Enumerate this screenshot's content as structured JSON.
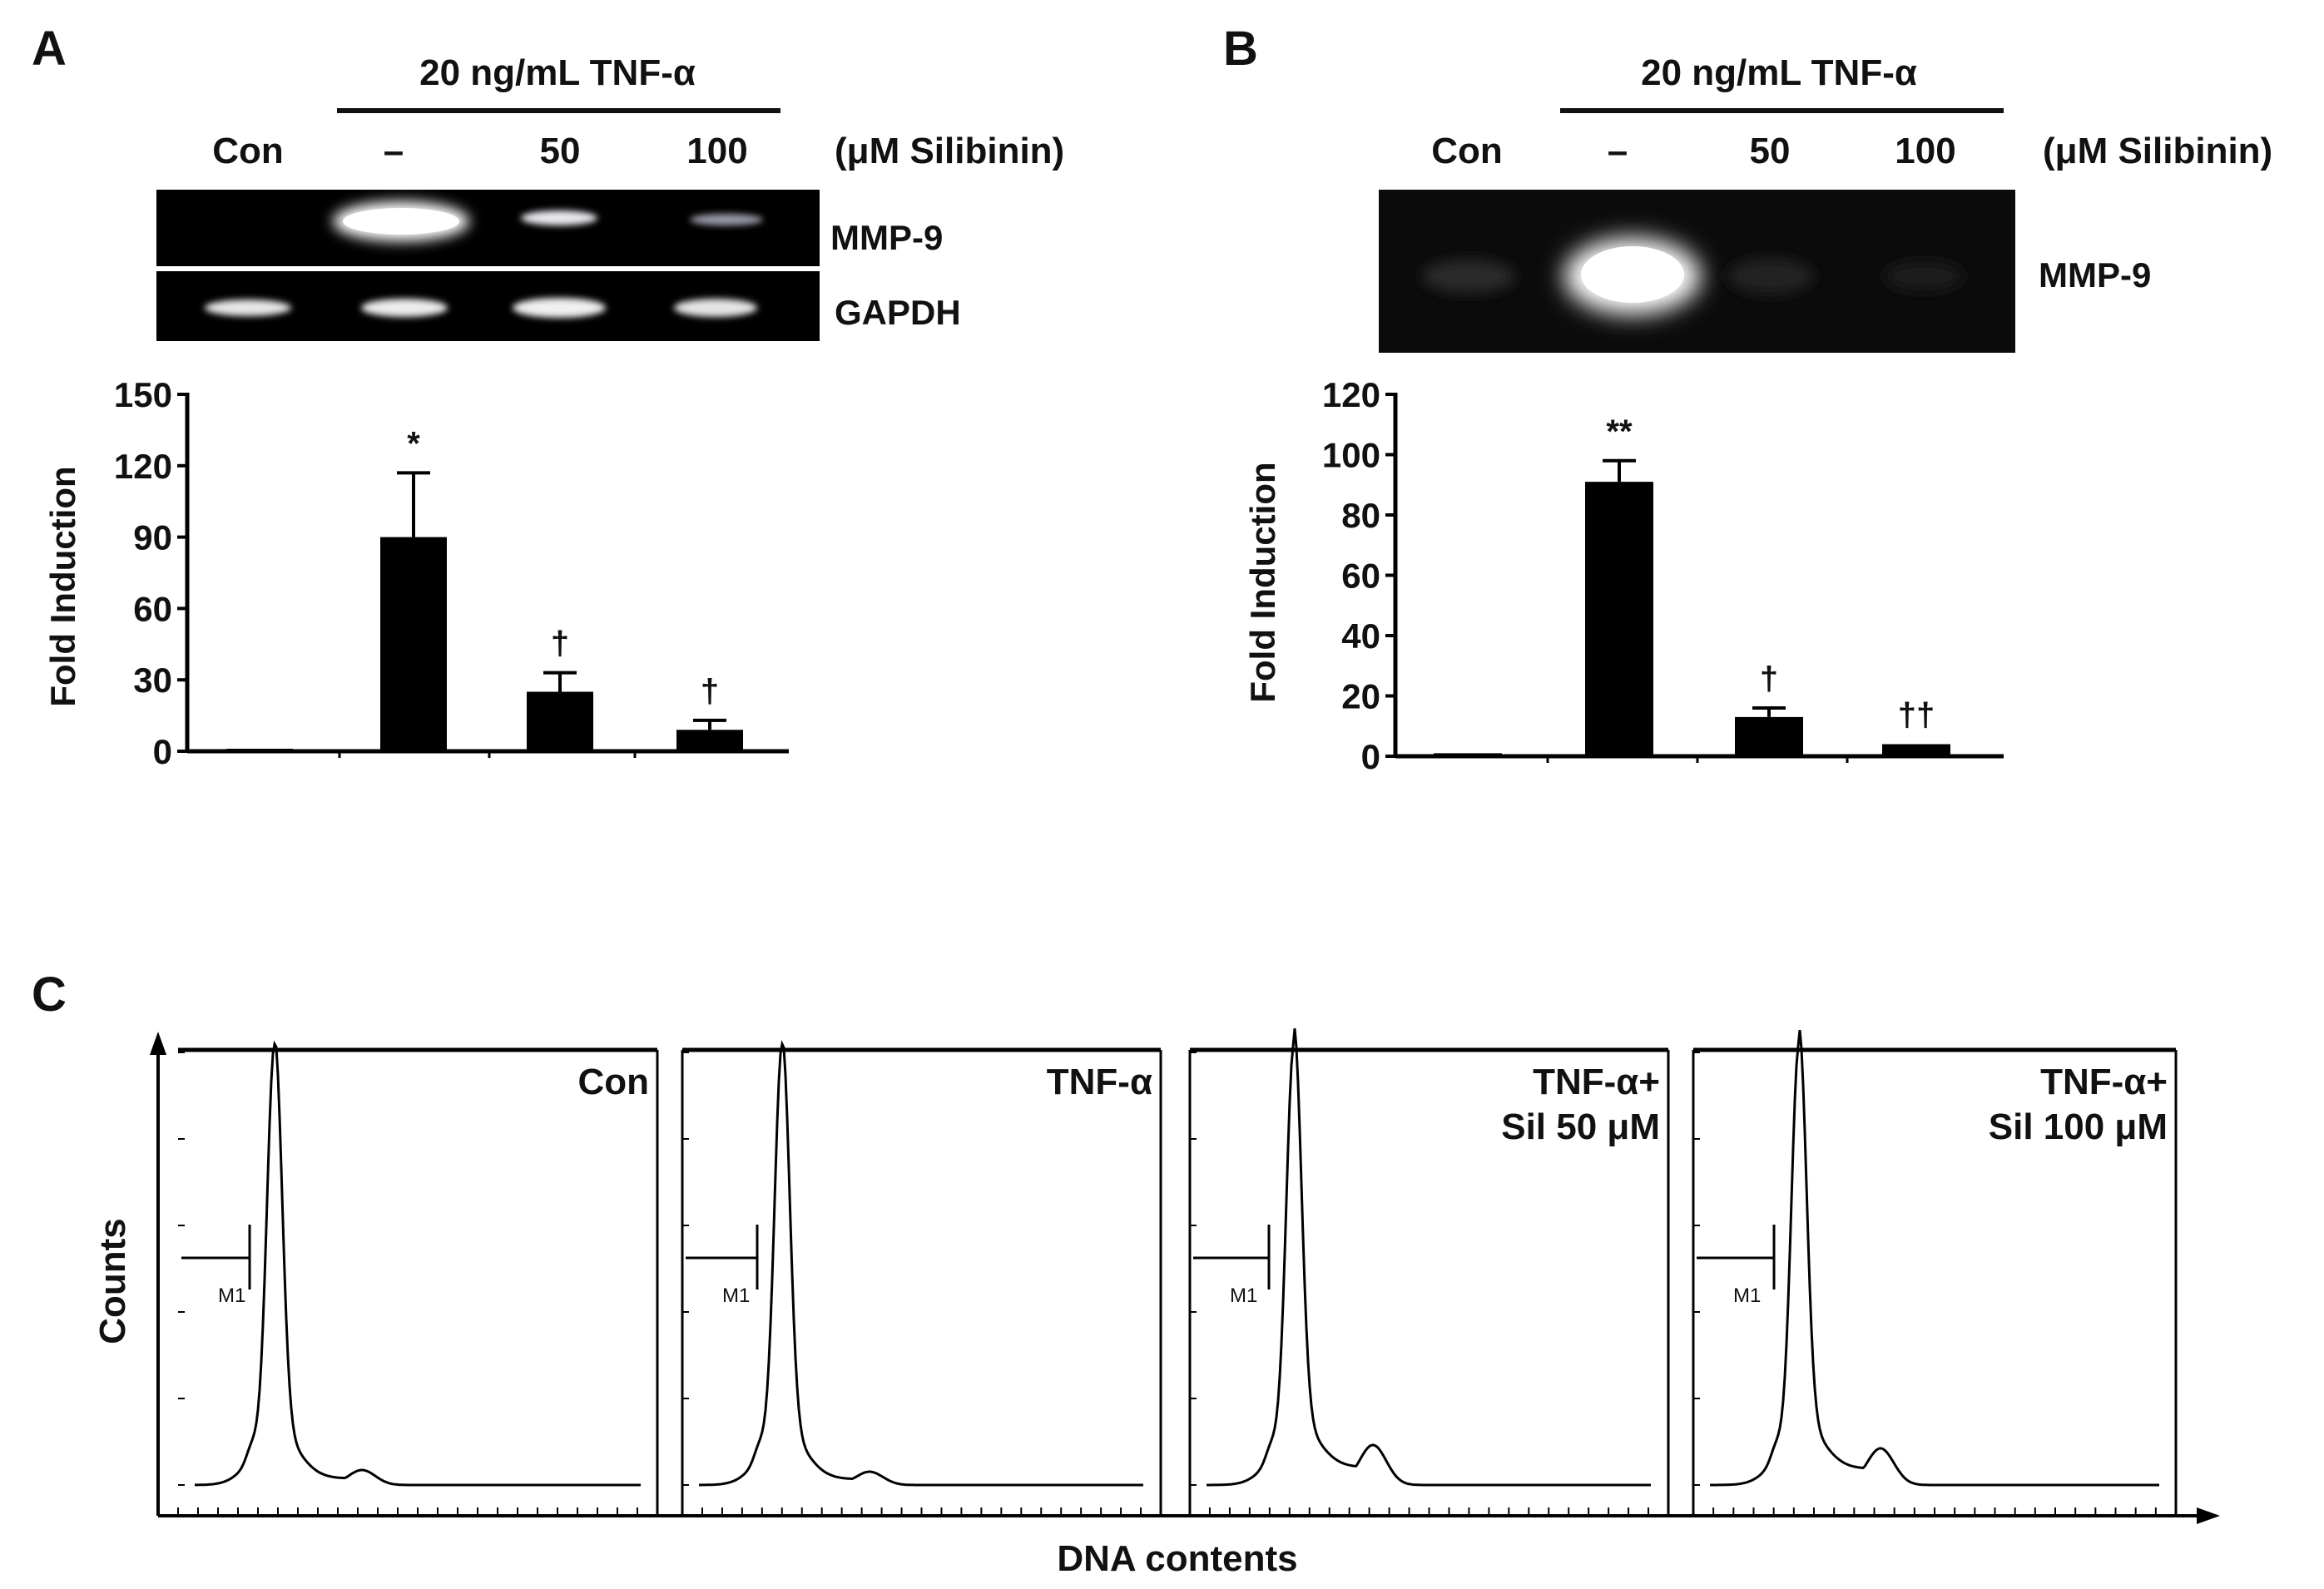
{
  "panels": {
    "A": {
      "letter": "A",
      "treatment_label": "20 ng/mL TNF-α",
      "lanes": [
        "Con",
        "–",
        "50",
        "100"
      ],
      "unit_label": "(μM Silibinin)",
      "blot_labels": [
        "MMP-9",
        "GAPDH"
      ],
      "ylabel": "Fold Induction",
      "yticks": [
        "0",
        "30",
        "60",
        "90",
        "120",
        "150"
      ],
      "significance": [
        "",
        "*",
        "†",
        "†"
      ]
    },
    "B": {
      "letter": "B",
      "treatment_label": "20 ng/mL TNF-α",
      "lanes": [
        "Con",
        "–",
        "50",
        "100"
      ],
      "unit_label": "(μM Silibinin)",
      "blot_labels": [
        "MMP-9"
      ],
      "ylabel": "Fold Induction",
      "yticks": [
        "0",
        "20",
        "40",
        "60",
        "80",
        "100",
        "120"
      ],
      "significance": [
        "",
        "**",
        "†",
        "††"
      ]
    },
    "C": {
      "letter": "C",
      "ylabel": "Counts",
      "xlabel": "DNA contents",
      "gate_label": "M1",
      "histograms": [
        {
          "label_lines": [
            "Con"
          ]
        },
        {
          "label_lines": [
            "TNF-α"
          ]
        },
        {
          "label_lines": [
            "TNF-α+",
            "Sil 50 μM"
          ]
        },
        {
          "label_lines": [
            "TNF-α+",
            "Sil 100 μM"
          ]
        }
      ]
    }
  },
  "chart_data": [
    {
      "type": "bar",
      "panel": "A",
      "categories": [
        "Con",
        "–",
        "50",
        "100"
      ],
      "values": [
        1,
        90,
        25,
        9
      ],
      "errors": [
        0,
        27,
        8,
        4
      ],
      "ylabel": "Fold Induction",
      "ylim": [
        0,
        150
      ],
      "yticks": [
        0,
        30,
        60,
        90,
        120,
        150
      ]
    },
    {
      "type": "bar",
      "panel": "B",
      "categories": [
        "Con",
        "–",
        "50",
        "100"
      ],
      "values": [
        1,
        91,
        13,
        4
      ],
      "errors": [
        0,
        7,
        3,
        0
      ],
      "ylabel": "Fold Induction",
      "ylim": [
        0,
        120
      ],
      "yticks": [
        0,
        20,
        40,
        60,
        80,
        100,
        120
      ]
    }
  ],
  "colors": {
    "bar": "#000000",
    "gel_background": "#000000",
    "text": "#111111"
  }
}
